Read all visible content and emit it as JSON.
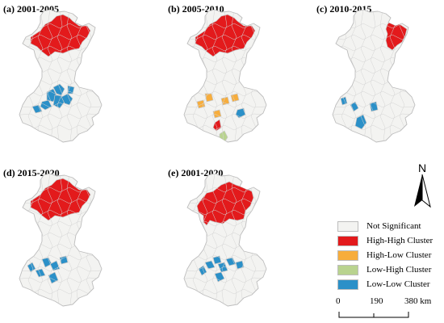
{
  "panels": [
    {
      "id": "a",
      "title": "(a) 2001-2005"
    },
    {
      "id": "b",
      "title": "(b) 2005-2010"
    },
    {
      "id": "c",
      "title": "(c) 2010-2015"
    },
    {
      "id": "d",
      "title": "(d) 2015-2020"
    },
    {
      "id": "e",
      "title": "(e) 2001-2020"
    }
  ],
  "legend": [
    {
      "key": "ns",
      "label": "Not Significant",
      "color": "#f3f3f1"
    },
    {
      "key": "hh",
      "label": "High-High Cluster",
      "color": "#e31a1c"
    },
    {
      "key": "hl",
      "label": "High-Low Cluster",
      "color": "#f7ad3c"
    },
    {
      "key": "lh",
      "label": "Low-High Cluster",
      "color": "#b9d38f"
    },
    {
      "key": "ll",
      "label": "Low-Low Cluster",
      "color": "#2b90c8"
    }
  ],
  "north": {
    "label": "N"
  },
  "scale": {
    "labels": [
      "0",
      "190",
      "380 km"
    ]
  }
}
